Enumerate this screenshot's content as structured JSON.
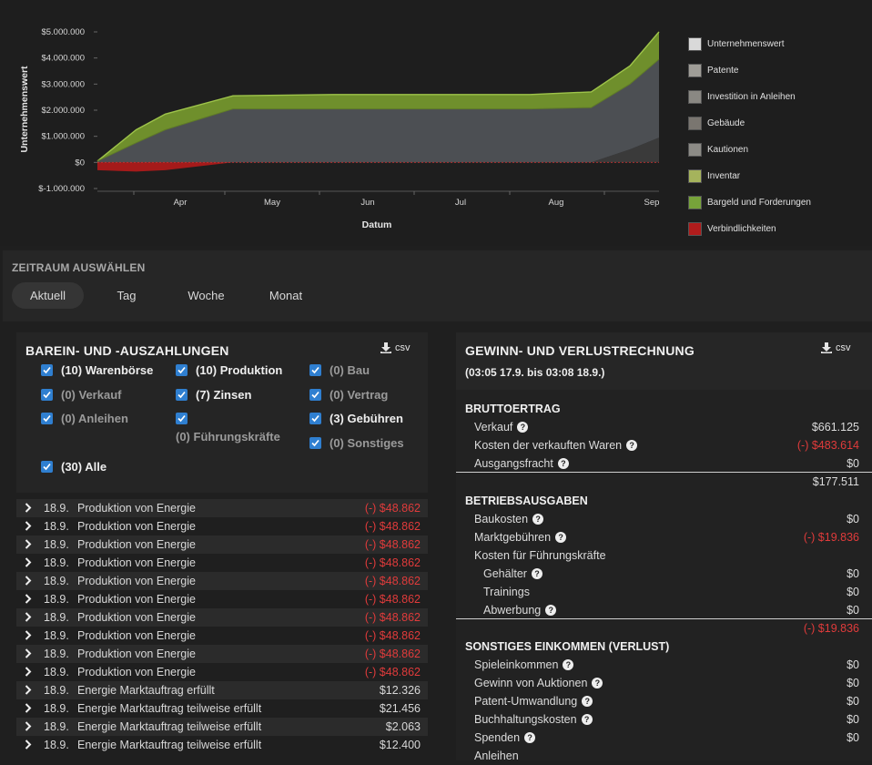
{
  "chart_data": {
    "type": "area",
    "ylabel": "Unternehmenswert",
    "xlabel": "Datum",
    "y_ticks": [
      "$5.000.000",
      "$4.000.000",
      "$3.000.000",
      "$2.000.000",
      "$1.000.000",
      "$0",
      "$-1.000.000"
    ],
    "x_ticks": [
      "Apr",
      "May",
      "Jun",
      "Jul",
      "Aug",
      "Sep"
    ],
    "ylim": [
      -1000000,
      5000000
    ],
    "legend_position": "right",
    "legend": [
      {
        "label": "Unternehmenswert",
        "color": "#d9d9d9"
      },
      {
        "label": "Patente",
        "color": "#9f9d97"
      },
      {
        "label": "Investition in Anleihen",
        "color": "#8a8883"
      },
      {
        "label": "Gebäude",
        "color": "#7a7670"
      },
      {
        "label": "Kautionen",
        "color": "#8c8b86"
      },
      {
        "label": "Inventar",
        "color": "#a5b35c"
      },
      {
        "label": "Bargeld und Forderungen",
        "color": "#77a33a"
      },
      {
        "label": "Verbindlichkeiten",
        "color": "#b01c1c"
      }
    ],
    "series": [
      {
        "name": "Gebäude",
        "x": [
          "Mar 20",
          "Apr 1",
          "Apr 10",
          "May 1",
          "Jun 1",
          "Jul 1",
          "Aug 1",
          "Aug 20",
          "Sep 1",
          "Sep 10"
        ],
        "values": [
          0,
          0,
          0,
          0,
          0,
          0,
          0,
          0,
          500000,
          950000
        ]
      },
      {
        "name": "Kautionen",
        "x": [
          "Mar 20",
          "Apr 1",
          "Apr 10",
          "May 1",
          "Jun 1",
          "Jul 1",
          "Aug 1",
          "Aug 20",
          "Sep 1",
          "Sep 10"
        ],
        "values": [
          50000,
          750000,
          1250000,
          2050000,
          2050000,
          2050000,
          2050000,
          2100000,
          2500000,
          3000000
        ]
      },
      {
        "name": "Bargeld und Forderungen",
        "x": [
          "Mar 20",
          "Apr 1",
          "Apr 10",
          "May 1",
          "Jun 1",
          "Jul 1",
          "Aug 1",
          "Aug 20",
          "Sep 1",
          "Sep 10"
        ],
        "values": [
          0,
          500000,
          600000,
          500000,
          550000,
          550000,
          550000,
          600000,
          700000,
          1050000
        ]
      },
      {
        "name": "Verbindlichkeiten",
        "x": [
          "Mar 20",
          "Apr 1",
          "Apr 10",
          "May 1",
          "Jun 1",
          "Jul 1",
          "Aug 1",
          "Aug 20",
          "Sep 1",
          "Sep 10"
        ],
        "values": [
          -300000,
          -350000,
          -300000,
          0,
          0,
          0,
          0,
          0,
          0,
          0
        ]
      }
    ]
  },
  "period": {
    "title": "ZEITRAUM AUSWÄHLEN",
    "options": [
      "Aktuell",
      "Tag",
      "Woche",
      "Monat"
    ],
    "selected": "Aktuell"
  },
  "cashflow": {
    "title": "BAREIN- UND -AUSZAHLUNGEN",
    "csv_label": "csv",
    "filters": [
      {
        "label": "(10) Warenbörse",
        "checked": true,
        "muted": false
      },
      {
        "label": "(10) Produktion",
        "checked": true,
        "muted": false
      },
      {
        "label": "(0) Bau",
        "checked": true,
        "muted": true
      },
      {
        "label": "(0) Verkauf",
        "checked": true,
        "muted": true
      },
      {
        "label": "(7) Zinsen",
        "checked": true,
        "muted": false
      },
      {
        "label": "(0) Vertrag",
        "checked": true,
        "muted": true
      },
      {
        "label": "(0) Anleihen",
        "checked": true,
        "muted": true
      },
      {
        "label": "(0) Führungskräfte",
        "checked": true,
        "muted": true
      },
      {
        "label": "(3) Gebühren",
        "checked": true,
        "muted": false
      },
      {
        "label": "(0) Sonstiges",
        "checked": true,
        "muted": true
      },
      {
        "label": "(30) Alle",
        "checked": true,
        "muted": false
      }
    ],
    "transactions": [
      {
        "date": "18.9.",
        "desc": "Produktion von Energie",
        "amount": "(-) $48.862",
        "negative": true
      },
      {
        "date": "18.9.",
        "desc": "Produktion von Energie",
        "amount": "(-) $48.862",
        "negative": true
      },
      {
        "date": "18.9.",
        "desc": "Produktion von Energie",
        "amount": "(-) $48.862",
        "negative": true
      },
      {
        "date": "18.9.",
        "desc": "Produktion von Energie",
        "amount": "(-) $48.862",
        "negative": true
      },
      {
        "date": "18.9.",
        "desc": "Produktion von Energie",
        "amount": "(-) $48.862",
        "negative": true
      },
      {
        "date": "18.9.",
        "desc": "Produktion von Energie",
        "amount": "(-) $48.862",
        "negative": true
      },
      {
        "date": "18.9.",
        "desc": "Produktion von Energie",
        "amount": "(-) $48.862",
        "negative": true
      },
      {
        "date": "18.9.",
        "desc": "Produktion von Energie",
        "amount": "(-) $48.862",
        "negative": true
      },
      {
        "date": "18.9.",
        "desc": "Produktion von Energie",
        "amount": "(-) $48.862",
        "negative": true
      },
      {
        "date": "18.9.",
        "desc": "Produktion von Energie",
        "amount": "(-) $48.862",
        "negative": true
      },
      {
        "date": "18.9.",
        "desc": "Energie Marktauftrag erfüllt",
        "amount": "$12.326",
        "negative": false
      },
      {
        "date": "18.9.",
        "desc": "Energie Marktauftrag teilweise erfüllt",
        "amount": "$21.456",
        "negative": false
      },
      {
        "date": "18.9.",
        "desc": "Energie Marktauftrag teilweise erfüllt",
        "amount": "$2.063",
        "negative": false
      },
      {
        "date": "18.9.",
        "desc": "Energie Marktauftrag teilweise erfüllt",
        "amount": "$12.400",
        "negative": false
      }
    ]
  },
  "pl": {
    "title": "GEWINN- UND VERLUSTRECHNUNG",
    "subtitle": "(03:05 17.9. bis 03:08 18.9.)",
    "csv_label": "csv",
    "rows": [
      {
        "kind": "section",
        "label": "BRUTTOERTRAG"
      },
      {
        "kind": "item",
        "level": 1,
        "label": "Verkauf",
        "help": true,
        "value": "$661.125",
        "negative": false
      },
      {
        "kind": "item",
        "level": 1,
        "label": "Kosten der verkauften Waren",
        "help": true,
        "value": "(-) $483.614",
        "negative": true
      },
      {
        "kind": "item",
        "level": 1,
        "label": "Ausgangsfracht",
        "help": true,
        "value": "$0",
        "negative": false
      },
      {
        "kind": "total",
        "value": "$177.511",
        "negative": false
      },
      {
        "kind": "section",
        "label": "BETRIEBSAUSGABEN"
      },
      {
        "kind": "item",
        "level": 1,
        "label": "Baukosten",
        "help": true,
        "value": "$0",
        "negative": false
      },
      {
        "kind": "item",
        "level": 1,
        "label": "Marktgebühren",
        "help": true,
        "value": "(-) $19.836",
        "negative": true
      },
      {
        "kind": "item",
        "level": 1,
        "label": "Kosten für Führungskräfte",
        "help": false,
        "value": "",
        "negative": false
      },
      {
        "kind": "item",
        "level": 2,
        "label": "Gehälter",
        "help": true,
        "value": "$0",
        "negative": false
      },
      {
        "kind": "item",
        "level": 2,
        "label": "Trainings",
        "help": false,
        "value": "$0",
        "negative": false
      },
      {
        "kind": "item",
        "level": 2,
        "label": "Abwerbung",
        "help": true,
        "value": "$0",
        "negative": false
      },
      {
        "kind": "total",
        "value": "(-) $19.836",
        "negative": true
      },
      {
        "kind": "section",
        "label": "SONSTIGES EINKOMMEN (VERLUST)"
      },
      {
        "kind": "item",
        "level": 1,
        "label": "Spieleinkommen",
        "help": true,
        "value": "$0",
        "negative": false
      },
      {
        "kind": "item",
        "level": 1,
        "label": "Gewinn von Auktionen",
        "help": true,
        "value": "$0",
        "negative": false
      },
      {
        "kind": "item",
        "level": 1,
        "label": "Patent-Umwandlung",
        "help": true,
        "value": "$0",
        "negative": false
      },
      {
        "kind": "item",
        "level": 1,
        "label": "Buchhaltungskosten",
        "help": true,
        "value": "$0",
        "negative": false
      },
      {
        "kind": "item",
        "level": 1,
        "label": "Spenden",
        "help": true,
        "value": "$0",
        "negative": false
      },
      {
        "kind": "item",
        "level": 1,
        "label": "Anleihen",
        "help": false,
        "value": "",
        "negative": false
      }
    ]
  }
}
